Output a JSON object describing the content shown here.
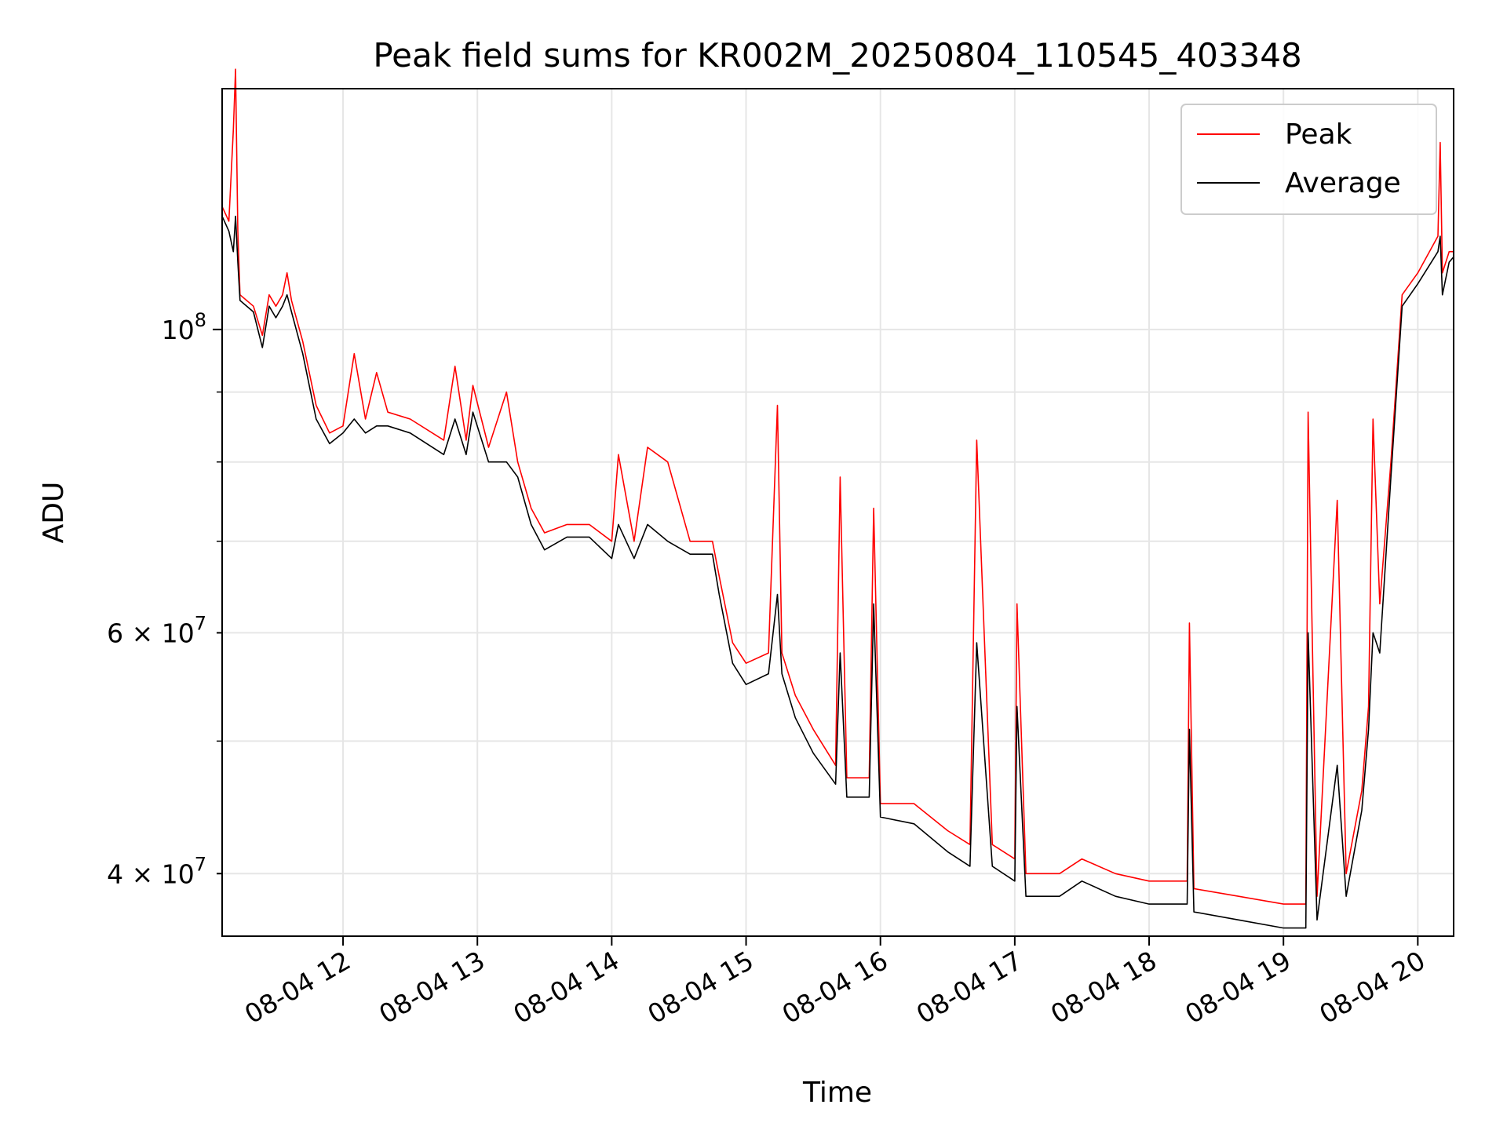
{
  "chart_data": {
    "type": "line",
    "title": "Peak field sums for KR002M_20250804_110545_403348",
    "xlabel": "Time",
    "ylabel": "ADU",
    "yscale": "log",
    "ylim": [
      36000000,
      150000000
    ],
    "xlim": [
      "2025-08-04 11:06",
      "2025-08-04 20:16"
    ],
    "x_ticks": [
      {
        "t": "2025-08-04 12:00",
        "label": "08-04 12"
      },
      {
        "t": "2025-08-04 13:00",
        "label": "08-04 13"
      },
      {
        "t": "2025-08-04 14:00",
        "label": "08-04 14"
      },
      {
        "t": "2025-08-04 15:00",
        "label": "08-04 15"
      },
      {
        "t": "2025-08-04 16:00",
        "label": "08-04 16"
      },
      {
        "t": "2025-08-04 17:00",
        "label": "08-04 17"
      },
      {
        "t": "2025-08-04 18:00",
        "label": "08-04 18"
      },
      {
        "t": "2025-08-04 19:00",
        "label": "08-04 19"
      },
      {
        "t": "2025-08-04 20:00",
        "label": "08-04 20"
      }
    ],
    "y_ticks_major": [
      {
        "value": 100000000,
        "base": "10",
        "exp": "8",
        "mult": ""
      }
    ],
    "y_ticks_minor": [
      {
        "value": 40000000,
        "base": "10",
        "exp": "7",
        "mult": "4 × "
      },
      {
        "value": 60000000,
        "base": "10",
        "exp": "7",
        "mult": "6 × "
      }
    ],
    "y_grid_minor_unlabeled": [
      50000000,
      70000000,
      80000000,
      90000000
    ],
    "grid": true,
    "legend": {
      "position": "top-right"
    },
    "series": [
      {
        "name": "Peak",
        "color": "#ff0000",
        "points": [
          [
            "2025-08-04 11:06",
            123000000
          ],
          [
            "2025-08-04 11:09",
            120000000
          ],
          [
            "2025-08-04 11:11",
            140000000
          ],
          [
            "2025-08-04 11:12",
            155000000
          ],
          [
            "2025-08-04 11:13",
            118000000
          ],
          [
            "2025-08-04 11:14",
            106000000
          ],
          [
            "2025-08-04 11:20",
            104000000
          ],
          [
            "2025-08-04 11:24",
            99000000
          ],
          [
            "2025-08-04 11:27",
            106000000
          ],
          [
            "2025-08-04 11:30",
            104000000
          ],
          [
            "2025-08-04 11:33",
            106000000
          ],
          [
            "2025-08-04 11:35",
            110000000
          ],
          [
            "2025-08-04 11:37",
            105000000
          ],
          [
            "2025-08-04 11:42",
            98000000
          ],
          [
            "2025-08-04 11:48",
            88000000
          ],
          [
            "2025-08-04 11:54",
            84000000
          ],
          [
            "2025-08-04 12:00",
            85000000
          ],
          [
            "2025-08-04 12:05",
            96000000
          ],
          [
            "2025-08-04 12:10",
            86000000
          ],
          [
            "2025-08-04 12:15",
            93000000
          ],
          [
            "2025-08-04 12:20",
            87000000
          ],
          [
            "2025-08-04 12:30",
            86000000
          ],
          [
            "2025-08-04 12:45",
            83000000
          ],
          [
            "2025-08-04 12:50",
            94000000
          ],
          [
            "2025-08-04 12:55",
            83000000
          ],
          [
            "2025-08-04 12:58",
            91000000
          ],
          [
            "2025-08-04 13:05",
            82000000
          ],
          [
            "2025-08-04 13:13",
            90000000
          ],
          [
            "2025-08-04 13:18",
            80000000
          ],
          [
            "2025-08-04 13:24",
            74000000
          ],
          [
            "2025-08-04 13:30",
            71000000
          ],
          [
            "2025-08-04 13:40",
            72000000
          ],
          [
            "2025-08-04 13:50",
            72000000
          ],
          [
            "2025-08-04 14:00",
            70000000
          ],
          [
            "2025-08-04 14:03",
            81000000
          ],
          [
            "2025-08-04 14:10",
            70000000
          ],
          [
            "2025-08-04 14:16",
            82000000
          ],
          [
            "2025-08-04 14:25",
            80000000
          ],
          [
            "2025-08-04 14:35",
            70000000
          ],
          [
            "2025-08-04 14:45",
            70000000
          ],
          [
            "2025-08-04 14:48",
            66000000
          ],
          [
            "2025-08-04 14:54",
            59000000
          ],
          [
            "2025-08-04 15:00",
            57000000
          ],
          [
            "2025-08-04 15:10",
            58000000
          ],
          [
            "2025-08-04 15:14",
            88000000
          ],
          [
            "2025-08-04 15:16",
            58000000
          ],
          [
            "2025-08-04 15:22",
            54000000
          ],
          [
            "2025-08-04 15:30",
            51000000
          ],
          [
            "2025-08-04 15:40",
            48000000
          ],
          [
            "2025-08-04 15:42",
            78000000
          ],
          [
            "2025-08-04 15:45",
            47000000
          ],
          [
            "2025-08-04 15:55",
            47000000
          ],
          [
            "2025-08-04 15:57",
            74000000
          ],
          [
            "2025-08-04 16:00",
            45000000
          ],
          [
            "2025-08-04 16:15",
            45000000
          ],
          [
            "2025-08-04 16:30",
            43000000
          ],
          [
            "2025-08-04 16:40",
            42000000
          ],
          [
            "2025-08-04 16:43",
            83000000
          ],
          [
            "2025-08-04 16:50",
            42000000
          ],
          [
            "2025-08-04 17:00",
            41000000
          ],
          [
            "2025-08-04 17:01",
            63000000
          ],
          [
            "2025-08-04 17:05",
            40000000
          ],
          [
            "2025-08-04 17:20",
            40000000
          ],
          [
            "2025-08-04 17:30",
            41000000
          ],
          [
            "2025-08-04 17:45",
            40000000
          ],
          [
            "2025-08-04 18:00",
            39500000
          ],
          [
            "2025-08-04 18:17",
            39500000
          ],
          [
            "2025-08-04 18:18",
            61000000
          ],
          [
            "2025-08-04 18:20",
            39000000
          ],
          [
            "2025-08-04 18:40",
            38500000
          ],
          [
            "2025-08-04 19:00",
            38000000
          ],
          [
            "2025-08-04 19:10",
            38000000
          ],
          [
            "2025-08-04 19:11",
            87000000
          ],
          [
            "2025-08-04 19:15",
            38500000
          ],
          [
            "2025-08-04 19:24",
            75000000
          ],
          [
            "2025-08-04 19:28",
            40000000
          ],
          [
            "2025-08-04 19:35",
            46000000
          ],
          [
            "2025-08-04 19:38",
            53000000
          ],
          [
            "2025-08-04 19:40",
            86000000
          ],
          [
            "2025-08-04 19:43",
            63000000
          ],
          [
            "2025-08-04 19:48",
            80000000
          ],
          [
            "2025-08-04 19:53",
            106000000
          ],
          [
            "2025-08-04 20:00",
            110000000
          ],
          [
            "2025-08-04 20:09",
            117000000
          ],
          [
            "2025-08-04 20:10",
            137000000
          ],
          [
            "2025-08-04 20:11",
            110000000
          ],
          [
            "2025-08-04 20:14",
            114000000
          ],
          [
            "2025-08-04 20:16",
            114000000
          ]
        ]
      },
      {
        "name": "Average",
        "color": "#000000",
        "points": [
          [
            "2025-08-04 11:06",
            121000000
          ],
          [
            "2025-08-04 11:09",
            118000000
          ],
          [
            "2025-08-04 11:11",
            114000000
          ],
          [
            "2025-08-04 11:12",
            121000000
          ],
          [
            "2025-08-04 11:13",
            112000000
          ],
          [
            "2025-08-04 11:14",
            105000000
          ],
          [
            "2025-08-04 11:20",
            103000000
          ],
          [
            "2025-08-04 11:24",
            97000000
          ],
          [
            "2025-08-04 11:27",
            104000000
          ],
          [
            "2025-08-04 11:30",
            102000000
          ],
          [
            "2025-08-04 11:33",
            104000000
          ],
          [
            "2025-08-04 11:35",
            106000000
          ],
          [
            "2025-08-04 11:37",
            103000000
          ],
          [
            "2025-08-04 11:42",
            96000000
          ],
          [
            "2025-08-04 11:48",
            86000000
          ],
          [
            "2025-08-04 11:54",
            82500000
          ],
          [
            "2025-08-04 12:00",
            84000000
          ],
          [
            "2025-08-04 12:05",
            86000000
          ],
          [
            "2025-08-04 12:10",
            84000000
          ],
          [
            "2025-08-04 12:15",
            85000000
          ],
          [
            "2025-08-04 12:20",
            85000000
          ],
          [
            "2025-08-04 12:30",
            84000000
          ],
          [
            "2025-08-04 12:45",
            81000000
          ],
          [
            "2025-08-04 12:50",
            86000000
          ],
          [
            "2025-08-04 12:55",
            81000000
          ],
          [
            "2025-08-04 12:58",
            87000000
          ],
          [
            "2025-08-04 13:05",
            80000000
          ],
          [
            "2025-08-04 13:13",
            80000000
          ],
          [
            "2025-08-04 13:18",
            78000000
          ],
          [
            "2025-08-04 13:24",
            72000000
          ],
          [
            "2025-08-04 13:30",
            69000000
          ],
          [
            "2025-08-04 13:40",
            70500000
          ],
          [
            "2025-08-04 13:50",
            70500000
          ],
          [
            "2025-08-04 14:00",
            68000000
          ],
          [
            "2025-08-04 14:03",
            72000000
          ],
          [
            "2025-08-04 14:10",
            68000000
          ],
          [
            "2025-08-04 14:16",
            72000000
          ],
          [
            "2025-08-04 14:25",
            70000000
          ],
          [
            "2025-08-04 14:35",
            68500000
          ],
          [
            "2025-08-04 14:45",
            68500000
          ],
          [
            "2025-08-04 14:48",
            64000000
          ],
          [
            "2025-08-04 14:54",
            57000000
          ],
          [
            "2025-08-04 15:00",
            55000000
          ],
          [
            "2025-08-04 15:10",
            56000000
          ],
          [
            "2025-08-04 15:14",
            64000000
          ],
          [
            "2025-08-04 15:16",
            56000000
          ],
          [
            "2025-08-04 15:22",
            52000000
          ],
          [
            "2025-08-04 15:30",
            49000000
          ],
          [
            "2025-08-04 15:40",
            46500000
          ],
          [
            "2025-08-04 15:42",
            58000000
          ],
          [
            "2025-08-04 15:45",
            45500000
          ],
          [
            "2025-08-04 15:55",
            45500000
          ],
          [
            "2025-08-04 15:57",
            63000000
          ],
          [
            "2025-08-04 16:00",
            44000000
          ],
          [
            "2025-08-04 16:15",
            43500000
          ],
          [
            "2025-08-04 16:30",
            41500000
          ],
          [
            "2025-08-04 16:40",
            40500000
          ],
          [
            "2025-08-04 16:43",
            59000000
          ],
          [
            "2025-08-04 16:50",
            40500000
          ],
          [
            "2025-08-04 17:00",
            39500000
          ],
          [
            "2025-08-04 17:01",
            53000000
          ],
          [
            "2025-08-04 17:05",
            38500000
          ],
          [
            "2025-08-04 17:20",
            38500000
          ],
          [
            "2025-08-04 17:30",
            39500000
          ],
          [
            "2025-08-04 17:45",
            38500000
          ],
          [
            "2025-08-04 18:00",
            38000000
          ],
          [
            "2025-08-04 18:17",
            38000000
          ],
          [
            "2025-08-04 18:18",
            51000000
          ],
          [
            "2025-08-04 18:20",
            37500000
          ],
          [
            "2025-08-04 18:40",
            37000000
          ],
          [
            "2025-08-04 19:00",
            36500000
          ],
          [
            "2025-08-04 19:10",
            36500000
          ],
          [
            "2025-08-04 19:11",
            60000000
          ],
          [
            "2025-08-04 19:15",
            37000000
          ],
          [
            "2025-08-04 19:24",
            48000000
          ],
          [
            "2025-08-04 19:28",
            38500000
          ],
          [
            "2025-08-04 19:35",
            44500000
          ],
          [
            "2025-08-04 19:38",
            51000000
          ],
          [
            "2025-08-04 19:40",
            60000000
          ],
          [
            "2025-08-04 19:43",
            58000000
          ],
          [
            "2025-08-04 19:48",
            78000000
          ],
          [
            "2025-08-04 19:53",
            104000000
          ],
          [
            "2025-08-04 20:00",
            108000000
          ],
          [
            "2025-08-04 20:09",
            114000000
          ],
          [
            "2025-08-04 20:10",
            117000000
          ],
          [
            "2025-08-04 20:11",
            106000000
          ],
          [
            "2025-08-04 20:14",
            112000000
          ],
          [
            "2025-08-04 20:16",
            113000000
          ]
        ]
      }
    ]
  }
}
